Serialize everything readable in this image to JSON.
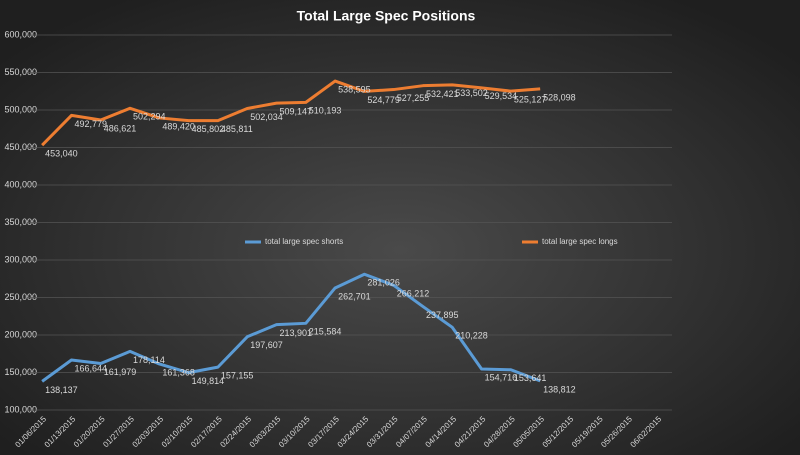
{
  "chart_data": {
    "type": "line",
    "title": "Total Large Spec Positions",
    "categories": [
      "01/06/2015",
      "01/13/2015",
      "01/20/2015",
      "01/27/2015",
      "02/03/2015",
      "02/10/2015",
      "02/17/2015",
      "02/24/2015",
      "03/03/2015",
      "03/10/2015",
      "03/17/2015",
      "03/24/2015",
      "03/31/2015",
      "04/07/2015",
      "04/14/2015",
      "04/21/2015",
      "04/28/2015",
      "05/05/2015",
      "05/12/2015",
      "05/19/2015",
      "05/26/2015",
      "06/02/2015"
    ],
    "series": [
      {
        "name": "total large spec shorts",
        "color": "#5b9bd5",
        "values": [
          138137,
          166644,
          161979,
          178114,
          161368,
          149814,
          157155,
          197607,
          213901,
          215584,
          262701,
          281026,
          266212,
          237895,
          210228,
          154716,
          153641,
          138812,
          null,
          null,
          null,
          null
        ],
        "value_labels": [
          "138,137",
          "166,644",
          "161,979",
          "178,114",
          "161,368",
          "149,814",
          "157,155",
          "197,607",
          "213,901",
          "215,584",
          "262,701",
          "281,026",
          "266,212",
          "237,895",
          "210,228",
          "154,716",
          "153,641",
          "138,812",
          null,
          null,
          null,
          null
        ]
      },
      {
        "name": "total large spec longs",
        "color": "#ed7d31",
        "values": [
          453040,
          492779,
          486621,
          502294,
          489420,
          485802,
          485811,
          502034,
          509147,
          510193,
          538595,
          524779,
          527255,
          532421,
          533502,
          529534,
          525127,
          528098,
          null,
          null,
          null,
          null
        ],
        "value_labels": [
          "453,040",
          "492,779",
          "486,621",
          "502,294",
          "489,420",
          "485,802",
          "485,811",
          "502,034",
          "509,147",
          "510,193",
          "538,595",
          "524,779",
          "527,255",
          "532,421",
          "533,502",
          "529,534",
          "525,127",
          "528,098",
          null,
          null,
          null,
          null
        ]
      }
    ],
    "ylim": [
      100000,
      600000
    ],
    "yticks": [
      {
        "value": 100000,
        "label": "100,000"
      },
      {
        "value": 150000,
        "label": "150,000"
      },
      {
        "value": 200000,
        "label": "200,000"
      },
      {
        "value": 250000,
        "label": "250,000"
      },
      {
        "value": 300000,
        "label": "300,000"
      },
      {
        "value": 350000,
        "label": "350,000"
      },
      {
        "value": 400000,
        "label": "400,000"
      },
      {
        "value": 450000,
        "label": "450,000"
      },
      {
        "value": 500000,
        "label": "500,000"
      },
      {
        "value": 550000,
        "label": "550,000"
      },
      {
        "value": 600000,
        "label": "600,000"
      }
    ],
    "grid": true
  }
}
